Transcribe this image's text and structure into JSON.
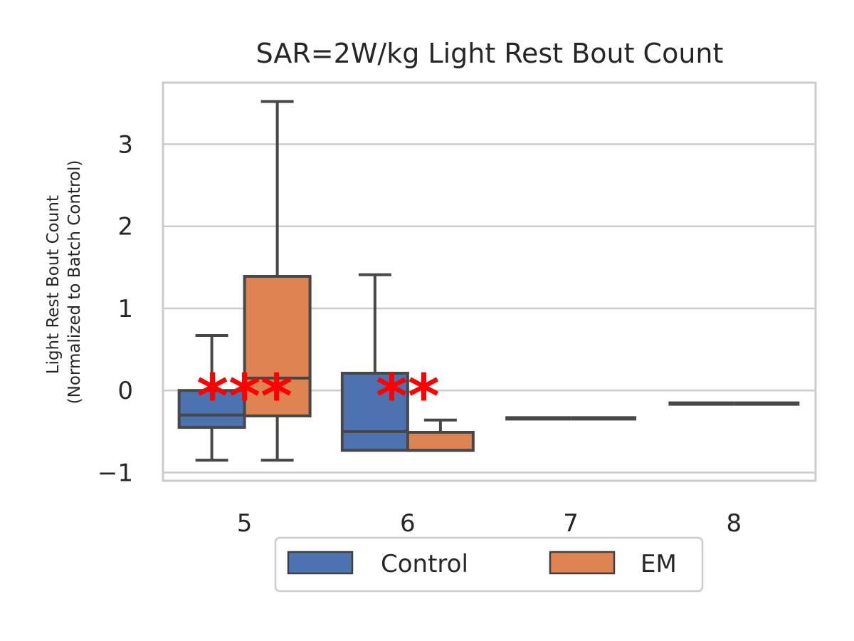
{
  "chart_data": {
    "type": "box",
    "title": "SAR=2W/kg Light Rest Bout Count",
    "xlabel": "",
    "ylabel": [
      "Light Rest Bout Count",
      "(Normalized to Batch Control)"
    ],
    "categories": [
      "5",
      "6",
      "7",
      "8"
    ],
    "ylim": [
      -1.1,
      3.75
    ],
    "yticks": [
      -1,
      0,
      1,
      2,
      3
    ],
    "ytick_labels": [
      "−1",
      "0",
      "1",
      "2",
      "3"
    ],
    "grid": true,
    "legend": {
      "position": "bottom-center",
      "columns": 2
    },
    "series": [
      {
        "name": "Control",
        "color": "#4c72b0",
        "boxes": [
          {
            "category": "5",
            "whisker_low": -0.85,
            "q1": -0.45,
            "median": -0.3,
            "q3": 0.0,
            "whisker_high": 0.67
          },
          {
            "category": "6",
            "whisker_low": -0.73,
            "q1": -0.73,
            "median": -0.5,
            "q3": 0.21,
            "whisker_high": 1.41
          },
          {
            "category": "7",
            "whisker_low": -0.34,
            "q1": -0.34,
            "median": -0.34,
            "q3": -0.34,
            "whisker_high": -0.34
          },
          {
            "category": "8",
            "whisker_low": -0.16,
            "q1": -0.16,
            "median": -0.16,
            "q3": -0.16,
            "whisker_high": -0.16
          }
        ]
      },
      {
        "name": "EM",
        "color": "#dd8452",
        "boxes": [
          {
            "category": "5",
            "whisker_low": -0.85,
            "q1": -0.31,
            "median": 0.15,
            "q3": 1.39,
            "whisker_high": 3.52
          },
          {
            "category": "6",
            "whisker_low": -0.73,
            "q1": -0.73,
            "median": -0.73,
            "q3": -0.51,
            "whisker_high": -0.36
          },
          {
            "category": "7",
            "whisker_low": -0.34,
            "q1": -0.34,
            "median": -0.34,
            "q3": -0.34,
            "whisker_high": -0.34
          },
          {
            "category": "8",
            "whisker_low": -0.16,
            "q1": -0.16,
            "median": -0.16,
            "q3": -0.16,
            "whisker_high": -0.16
          }
        ]
      }
    ],
    "annotations": [
      {
        "category": "5",
        "text": "***",
        "y": 0.1,
        "color": "#ff0000"
      },
      {
        "category": "6",
        "text": "**",
        "y": 0.1,
        "color": "#ff0000"
      }
    ]
  }
}
